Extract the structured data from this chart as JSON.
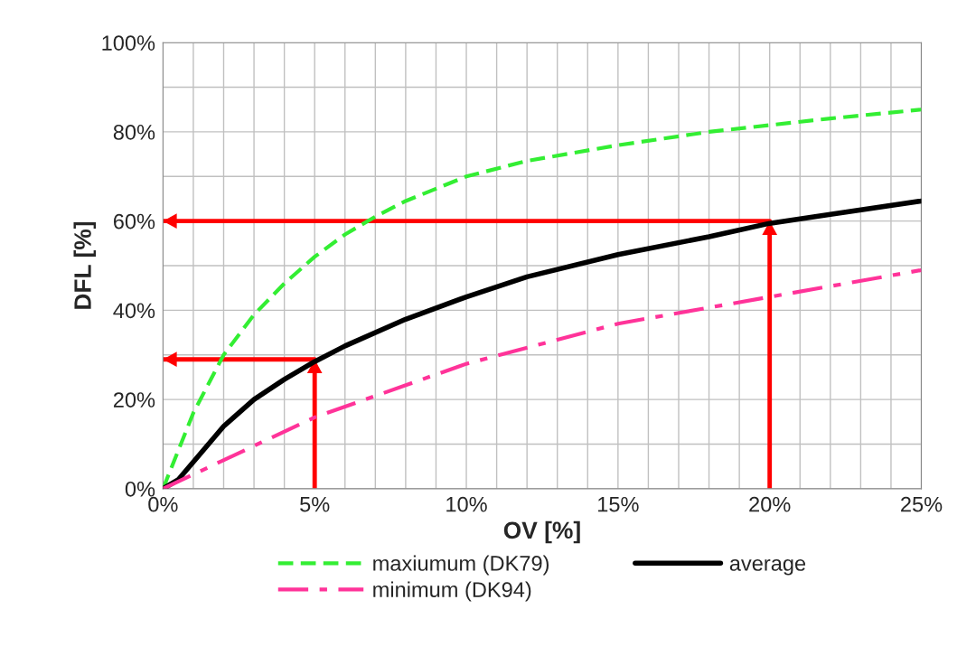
{
  "chart_data": {
    "type": "line",
    "xlabel": "OV [%]",
    "ylabel": "DFL [%]",
    "xlim": [
      0,
      25
    ],
    "ylim": [
      0,
      100
    ],
    "xticks": [
      {
        "value": 0,
        "label": "0%"
      },
      {
        "value": 1,
        "label": null
      },
      {
        "value": 2,
        "label": null
      },
      {
        "value": 3,
        "label": null
      },
      {
        "value": 4,
        "label": null
      },
      {
        "value": 5,
        "label": "5%"
      },
      {
        "value": 6,
        "label": null
      },
      {
        "value": 7,
        "label": null
      },
      {
        "value": 8,
        "label": null
      },
      {
        "value": 9,
        "label": null
      },
      {
        "value": 10,
        "label": "10%"
      },
      {
        "value": 11,
        "label": null
      },
      {
        "value": 12,
        "label": null
      },
      {
        "value": 13,
        "label": null
      },
      {
        "value": 14,
        "label": null
      },
      {
        "value": 15,
        "label": "15%"
      },
      {
        "value": 16,
        "label": null
      },
      {
        "value": 17,
        "label": null
      },
      {
        "value": 18,
        "label": null
      },
      {
        "value": 19,
        "label": null
      },
      {
        "value": 20,
        "label": "20%"
      },
      {
        "value": 21,
        "label": null
      },
      {
        "value": 22,
        "label": null
      },
      {
        "value": 23,
        "label": null
      },
      {
        "value": 24,
        "label": null
      },
      {
        "value": 25,
        "label": "25%"
      }
    ],
    "yticks": [
      {
        "value": 0,
        "label": "0%"
      },
      {
        "value": 10,
        "label": null
      },
      {
        "value": 20,
        "label": "20%"
      },
      {
        "value": 30,
        "label": null
      },
      {
        "value": 40,
        "label": "40%"
      },
      {
        "value": 50,
        "label": null
      },
      {
        "value": 60,
        "label": "60%"
      },
      {
        "value": 70,
        "label": null
      },
      {
        "value": 80,
        "label": "80%"
      },
      {
        "value": 90,
        "label": null
      },
      {
        "value": 100,
        "label": "100%"
      }
    ],
    "grid": true,
    "legend": "bottom",
    "marker": "none",
    "series": [
      {
        "name": "maxiumum (DK79)",
        "color": "#33ee33",
        "line_style": "dashed",
        "x": [
          0,
          1,
          2,
          3,
          4,
          5,
          6,
          7,
          8,
          10,
          12,
          15,
          18,
          20,
          22,
          25
        ],
        "values": [
          0,
          17,
          30,
          39,
          46,
          52,
          57,
          61,
          64.5,
          70,
          73.5,
          77,
          80,
          81.5,
          83,
          85
        ]
      },
      {
        "name": "average",
        "color": "#000000",
        "line_style": "solid",
        "x": [
          0,
          0.5,
          1,
          2,
          3,
          4,
          5,
          6,
          8,
          10,
          12,
          15,
          18,
          20,
          22,
          25
        ],
        "values": [
          0,
          2,
          6,
          14,
          20,
          24.5,
          28.5,
          32,
          38,
          43,
          47.5,
          52.5,
          56.5,
          59.5,
          61.5,
          64.5
        ]
      },
      {
        "name": "minimum (DK94)",
        "color": "#ff3399",
        "line_style": "dashdot",
        "x": [
          0,
          5,
          10,
          15,
          20,
          25
        ],
        "values": [
          0,
          16,
          28,
          37,
          43,
          49
        ]
      },
      {
        "color": "#ff0000",
        "line_style": "solid",
        "x": [
          20,
          20,
          0
        ],
        "values": [
          0,
          60,
          60
        ]
      },
      {
        "color": "#ff0000",
        "line_style": "solid",
        "x": [
          5,
          5,
          0
        ],
        "values": [
          0,
          29,
          29
        ]
      }
    ]
  }
}
